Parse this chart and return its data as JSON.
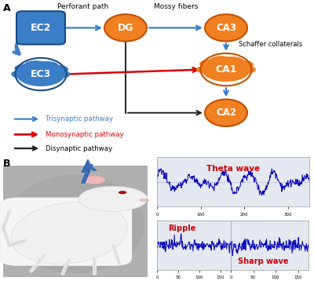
{
  "bg_color": "#ffffff",
  "node_color_orange": "#F08020",
  "node_color_blue": "#3A7EC8",
  "node_edge_orange": "#C05000",
  "node_edge_blue": "#1A4A80",
  "arrow_blue": "#3A7EC8",
  "arrow_red": "#DD0000",
  "arrow_black": "#222222",
  "legend_blue": "#3A7EC8",
  "legend_red": "#DD0000",
  "legend_black": "#222222",
  "label_perforant": "Perforant path",
  "label_mossy": "Mossy fibers",
  "label_schaffer": "Schaffer collaterals",
  "label_tri": "Trisynaptic pathway",
  "label_mono": "Monosynaptic pathway",
  "label_di": "Disynaptic pathway",
  "wave_color": "#0000BB",
  "wave_label_theta": "Theta wave",
  "wave_label_ripple": "Ripple",
  "wave_label_sharp": "Sharp wave",
  "wave_text_color": "#CC0000",
  "panel_bg": "#E4E8F0",
  "lightning_color": "#3A6AB0"
}
